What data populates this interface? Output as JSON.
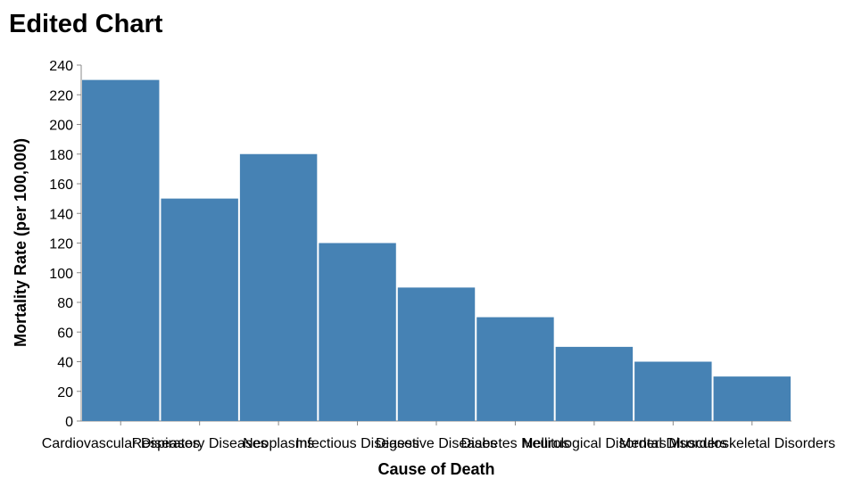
{
  "chart_data": {
    "type": "bar",
    "title": "Edited Chart",
    "xlabel": "Cause of Death",
    "ylabel": "Mortality Rate (per 100,000)",
    "categories": [
      "Cardiovascular Diseases",
      "Respiratory Diseases",
      "Neoplasms",
      "Infectious Diseases",
      "Digestive Diseases",
      "Diabetes Mellitus",
      "Neurological Disorders",
      "Mental Disorders",
      "Musculoskeletal Disorders"
    ],
    "values": [
      230,
      150,
      180,
      120,
      90,
      70,
      50,
      40,
      30
    ],
    "ylim": [
      0,
      240
    ],
    "yticks": [
      0,
      20,
      40,
      60,
      80,
      100,
      120,
      140,
      160,
      180,
      200,
      220,
      240
    ],
    "grid": false,
    "color": "#4682b4"
  }
}
